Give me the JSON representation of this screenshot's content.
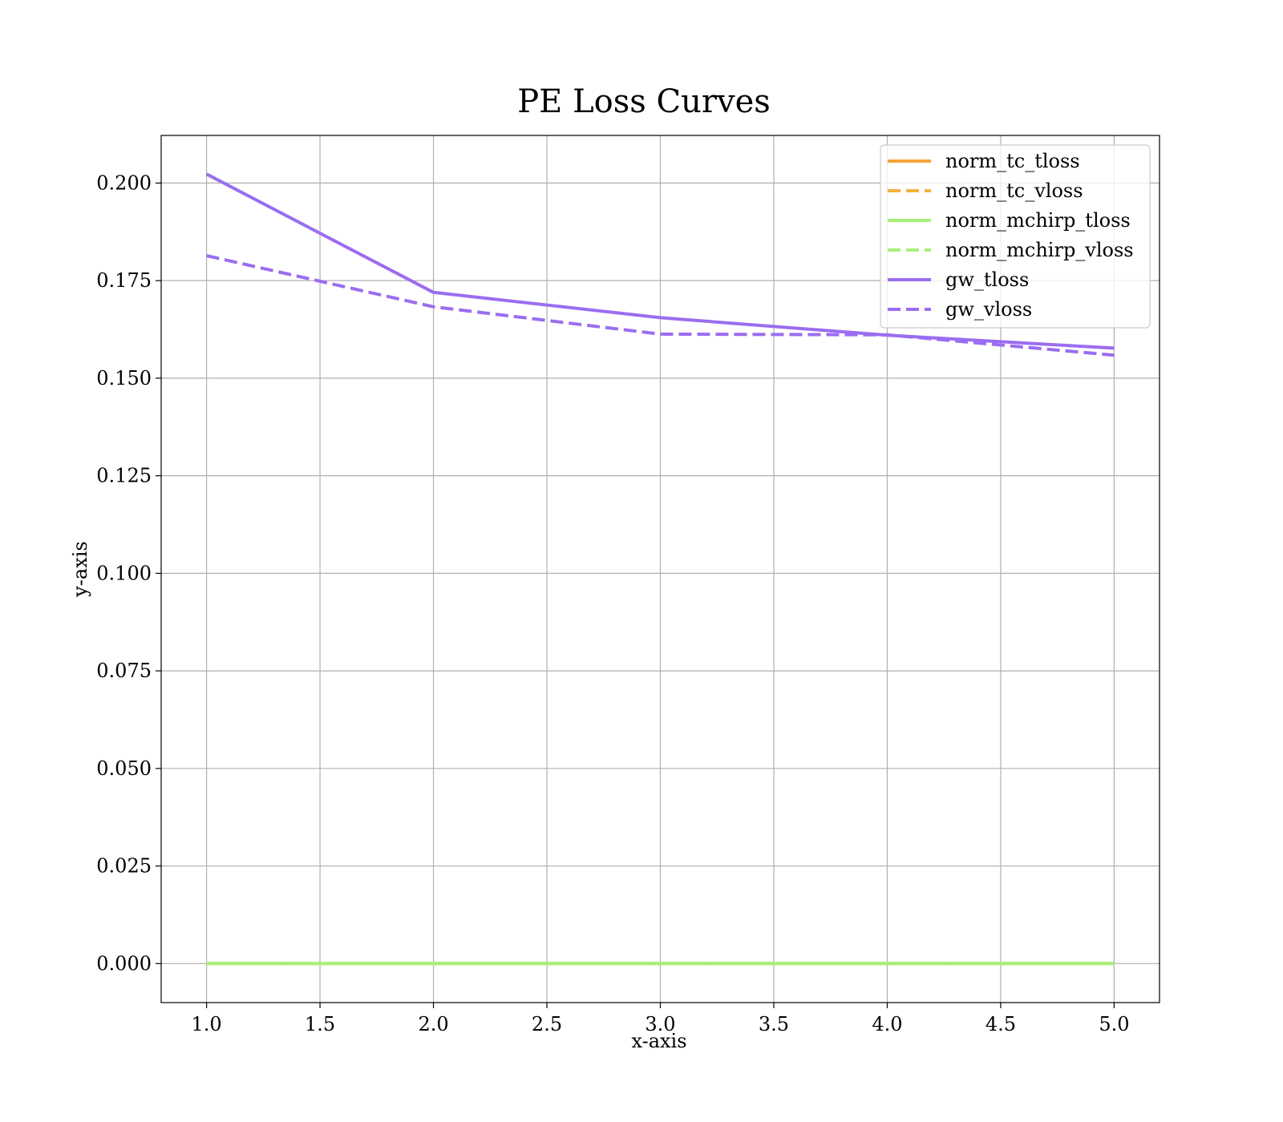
{
  "chart_data": {
    "type": "line",
    "title": "PE Loss Curves",
    "xlabel": "x-axis",
    "ylabel": "y-axis",
    "xlim": [
      0.8,
      5.2
    ],
    "ylim": [
      -0.01,
      0.2122
    ],
    "xticks": [
      1.0,
      1.5,
      2.0,
      2.5,
      3.0,
      3.5,
      4.0,
      4.5,
      5.0
    ],
    "yticks": [
      0.0,
      0.025,
      0.05,
      0.075,
      0.1,
      0.125,
      0.15,
      0.175,
      0.2
    ],
    "xtick_labels": [
      "1.0",
      "1.5",
      "2.0",
      "2.5",
      "3.0",
      "3.5",
      "4.0",
      "4.5",
      "5.0"
    ],
    "ytick_labels": [
      "0.000",
      "0.025",
      "0.050",
      "0.075",
      "0.100",
      "0.125",
      "0.150",
      "0.175",
      "0.200"
    ],
    "grid": true,
    "legend_position": "top-right",
    "x": [
      1,
      2,
      3,
      4,
      5
    ],
    "series": [
      {
        "name": "norm_tc_tloss",
        "values": [
          0.0,
          0.0,
          0.0,
          0.0,
          0.0
        ],
        "color": "#f5a33b",
        "dash": "solid"
      },
      {
        "name": "norm_tc_vloss",
        "values": [
          0.0,
          0.0,
          0.0,
          0.0,
          0.0
        ],
        "color": "#f0b240",
        "dash": "dashed"
      },
      {
        "name": "norm_mchirp_tloss",
        "values": [
          0.0,
          0.0,
          0.0,
          0.0,
          0.0
        ],
        "color": "#a8f07a",
        "dash": "solid"
      },
      {
        "name": "norm_mchirp_vloss",
        "values": [
          0.0,
          0.0,
          0.0,
          0.0,
          0.0
        ],
        "color": "#a8f07a",
        "dash": "dashed"
      },
      {
        "name": "gw_tloss",
        "values": [
          0.2023,
          0.172,
          0.1655,
          0.161,
          0.1577
        ],
        "color": "#9b6df0",
        "dash": "solid"
      },
      {
        "name": "gw_vloss",
        "values": [
          0.1814,
          0.1683,
          0.1613,
          0.1611,
          0.1559
        ],
        "color": "#9b6df0",
        "dash": "dashed"
      }
    ]
  }
}
